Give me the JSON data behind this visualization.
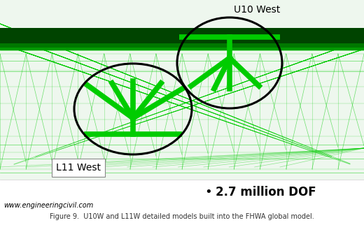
{
  "background_color": "#ffffff",
  "title_u10w": "U10 West",
  "title_l11w": "L11 West",
  "bullet_text": "2.7 million DOF",
  "website_text": "www.engineeringcivil.com",
  "caption_text": "Figure 9.  U10W and L11W detailed models built into the FHWA global model.",
  "fig_width": 5.2,
  "fig_height": 3.32,
  "dpi": 100,
  "green_wire": "#00cc00",
  "green_wire_light": "#33dd33",
  "green_dark": "#005500",
  "green_beam": "#00cc00",
  "deck_color": "#004400",
  "scene_bg": "#f0f8f0"
}
